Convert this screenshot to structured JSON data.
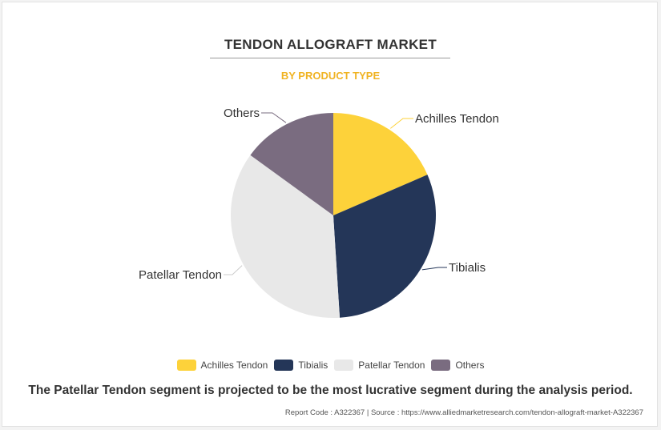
{
  "chart_data": {
    "type": "pie",
    "title": "TENDON ALLOGRAFT MARKET",
    "subtitle": "BY PRODUCT TYPE",
    "categories": [
      "Achilles Tendon",
      "Tibialis",
      "Patellar Tendon",
      "Others"
    ],
    "values": [
      18.5,
      30.5,
      36,
      15
    ],
    "colors": [
      "#fdd23a",
      "#243658",
      "#e8e8e8",
      "#7a6c80"
    ],
    "legend_position": "bottom"
  },
  "headline": "The Patellar Tendon segment is projected to be the most lucrative segment during the analysis period.",
  "source": "Report Code : A322367  |  Source : https://www.alliedmarketresearch.com/tendon-allograft-market-A322367"
}
